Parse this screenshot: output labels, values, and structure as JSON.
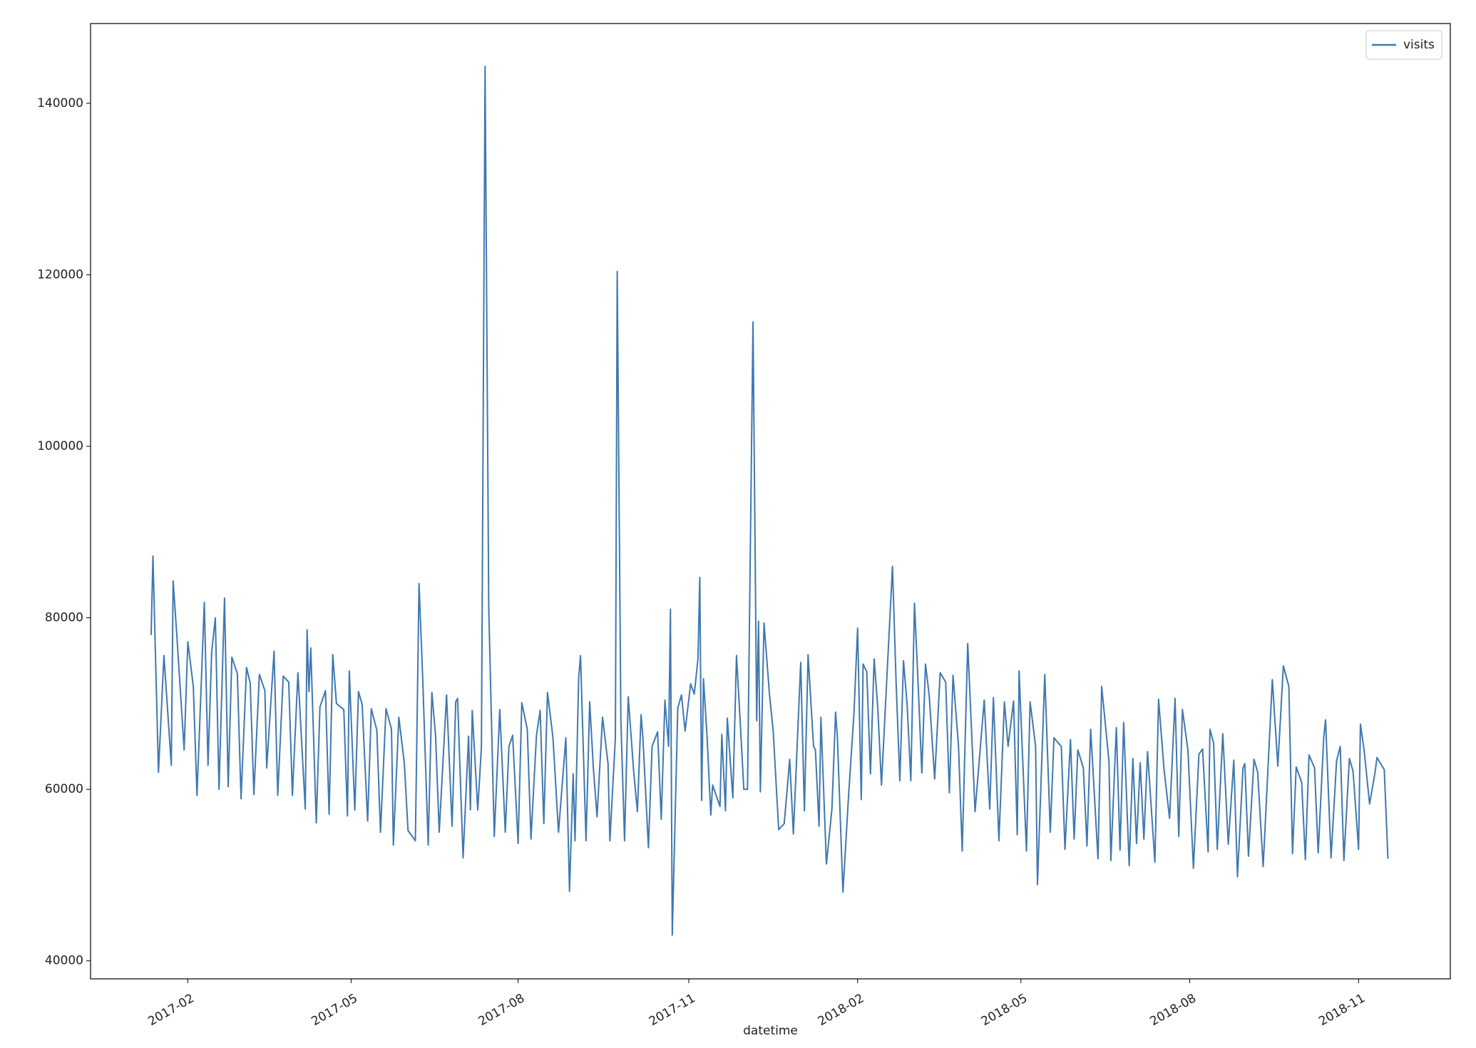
{
  "chart_data": {
    "type": "line",
    "x_label": "datetime",
    "legend": "upper right",
    "grid": false,
    "xlim": [
      17145,
      17886
    ],
    "ylim": [
      37900,
      149300
    ],
    "xticks": [
      {
        "value": 17198,
        "label": "2017-02"
      },
      {
        "value": 17287,
        "label": "2017-05"
      },
      {
        "value": 17378,
        "label": "2017-08"
      },
      {
        "value": 17471,
        "label": "2017-11"
      },
      {
        "value": 17563,
        "label": "2018-02"
      },
      {
        "value": 17652,
        "label": "2018-05"
      },
      {
        "value": 17744,
        "label": "2018-08"
      },
      {
        "value": 17836,
        "label": "2018-11"
      }
    ],
    "yticks": [
      40000,
      60000,
      80000,
      100000,
      120000,
      140000
    ],
    "x": [
      17178,
      17179,
      17182,
      17185,
      17189,
      17190,
      17192,
      17196,
      17198,
      17201,
      17203,
      17207,
      17209,
      17211,
      17213,
      17215,
      17218,
      17220,
      17222,
      17225,
      17227,
      17230,
      17232,
      17234,
      17237,
      17240,
      17241,
      17245,
      17247,
      17250,
      17253,
      17255,
      17258,
      17262,
      17263,
      17264,
      17265,
      17268,
      17270,
      17273,
      17275,
      17277,
      17279,
      17283,
      17285,
      17286,
      17289,
      17291,
      17293,
      17296,
      17298,
      17301,
      17303,
      17306,
      17309,
      17310,
      17313,
      17316,
      17318,
      17322,
      17324,
      17326,
      17329,
      17331,
      17333,
      17335,
      17339,
      17342,
      17344,
      17345,
      17348,
      17351,
      17352,
      17353,
      17356,
      17358,
      17360,
      17362,
      17365,
      17368,
      17371,
      17373,
      17375,
      17378,
      17380,
      17383,
      17385,
      17388,
      17390,
      17392,
      17394,
      17397,
      17400,
      17404,
      17406,
      17408,
      17409,
      17411,
      17412,
      17415,
      17417,
      17419,
      17421,
      17424,
      17427,
      17428,
      17431,
      17432,
      17434,
      17436,
      17438,
      17441,
      17443,
      17445,
      17446,
      17449,
      17451,
      17454,
      17456,
      17458,
      17460,
      17461,
      17462,
      17465,
      17467,
      17469,
      17472,
      17474,
      17476,
      17477,
      17478,
      17479,
      17481,
      17483,
      17484,
      17488,
      17489,
      17491,
      17492,
      17495,
      17497,
      17499,
      17501,
      17503,
      17506,
      17508,
      17509,
      17510,
      17512,
      17515,
      17517,
      17520,
      17523,
      17526,
      17528,
      17532,
      17534,
      17536,
      17539,
      17540,
      17542,
      17543,
      17546,
      17549,
      17551,
      17552,
      17555,
      17558,
      17561,
      17563,
      17565,
      17566,
      17568,
      17570,
      17572,
      17574,
      17576,
      17582,
      17584,
      17586,
      17588,
      17590,
      17592,
      17594,
      17596,
      17598,
      17600,
      17602,
      17605,
      17608,
      17611,
      17613,
      17615,
      17618,
      17620,
      17623,
      17625,
      17627,
      17632,
      17635,
      17637,
      17640,
      17643,
      17645,
      17648,
      17650,
      17651,
      17655,
      17657,
      17660,
      17661,
      17665,
      17668,
      17670,
      17674,
      17676,
      17679,
      17681,
      17683,
      17686,
      17688,
      17690,
      17694,
      17696,
      17700,
      17701,
      17704,
      17706,
      17708,
      17711,
      17713,
      17715,
      17717,
      17719,
      17721,
      17725,
      17727,
      17730,
      17733,
      17736,
      17738,
      17740,
      17743,
      17746,
      17749,
      17751,
      17754,
      17755,
      17757,
      17759,
      17762,
      17765,
      17768,
      17770,
      17773,
      17774,
      17776,
      17779,
      17781,
      17784,
      17789,
      17792,
      17795,
      17798,
      17800,
      17802,
      17805,
      17807,
      17809,
      17812,
      17814,
      17817,
      17818,
      17821,
      17824,
      17826,
      17828,
      17831,
      17833,
      17836,
      17837,
      17839,
      17842,
      17845,
      17846,
      17850,
      17852
    ],
    "series": [
      {
        "name": "visits",
        "color": "#3f78b0",
        "values": [
          78000,
          87200,
          62000,
          75600,
          62800,
          84300,
          78000,
          64600,
          77200,
          72000,
          59300,
          81800,
          62800,
          76000,
          80000,
          60000,
          82300,
          60300,
          75400,
          73500,
          58900,
          74200,
          72400,
          59400,
          73400,
          71500,
          62500,
          76100,
          59300,
          73200,
          72500,
          59300,
          73600,
          57700,
          78600,
          71400,
          76500,
          56100,
          69600,
          71500,
          57100,
          75700,
          70000,
          69300,
          56900,
          73800,
          57600,
          71400,
          69900,
          56300,
          69400,
          66900,
          55000,
          69400,
          67000,
          53500,
          68400,
          63000,
          55200,
          54000,
          84000,
          73000,
          53500,
          71300,
          66300,
          55000,
          71000,
          55700,
          70200,
          70600,
          52000,
          66200,
          57600,
          69200,
          57600,
          65000,
          144300,
          81000,
          54500,
          69300,
          55000,
          65000,
          66300,
          53700,
          70100,
          67000,
          54200,
          66300,
          69200,
          56000,
          71300,
          66000,
          55000,
          66000,
          48100,
          61800,
          54000,
          73000,
          75600,
          54000,
          70200,
          62500,
          56800,
          68400,
          63000,
          54000,
          66000,
          120400,
          68000,
          54000,
          70800,
          62000,
          57400,
          68700,
          66000,
          53200,
          65000,
          66700,
          56500,
          70400,
          65000,
          81000,
          43000,
          69500,
          71000,
          66800,
          72300,
          71100,
          75200,
          84700,
          58700,
          72900,
          66000,
          57000,
          60500,
          58000,
          66400,
          57500,
          68300,
          59000,
          75600,
          68000,
          60000,
          60000,
          114500,
          68000,
          79600,
          59700,
          79400,
          71000,
          66800,
          55300,
          56000,
          63500,
          54800,
          74800,
          57500,
          75700,
          65000,
          64600,
          55700,
          68400,
          51300,
          57700,
          69000,
          66000,
          48000,
          59000,
          68800,
          78800,
          58800,
          74600,
          73700,
          61800,
          75200,
          69500,
          60500,
          86000,
          72300,
          61000,
          75000,
          69800,
          61000,
          81700,
          72200,
          61900,
          74600,
          71000,
          61200,
          73600,
          72500,
          59600,
          73300,
          65000,
          52800,
          77000,
          67300,
          57400,
          70400,
          57700,
          70700,
          54000,
          70200,
          65000,
          70300,
          54700,
          73800,
          52800,
          70200,
          65000,
          48900,
          73400,
          55000,
          66000,
          65000,
          53000,
          65800,
          54200,
          64600,
          62500,
          53400,
          67000,
          51900,
          72000,
          63200,
          51700,
          67200,
          52900,
          67800,
          51100,
          63600,
          53700,
          63100,
          54200,
          64400,
          51500,
          70500,
          62300,
          56600,
          70600,
          54500,
          69300,
          64600,
          50800,
          64100,
          64700,
          52700,
          67000,
          65400,
          53000,
          66500,
          53600,
          63400,
          49800,
          62500,
          63000,
          52200,
          63500,
          62000,
          51000,
          72800,
          62700,
          74400,
          72000,
          52500,
          62600,
          60800,
          51800,
          64000,
          62500,
          52600,
          66000,
          68100,
          52000,
          63300,
          65000,
          51700,
          63600,
          62100,
          53000,
          67600,
          64600,
          58300,
          62000,
          63700,
          62300,
          51900
        ]
      }
    ]
  }
}
